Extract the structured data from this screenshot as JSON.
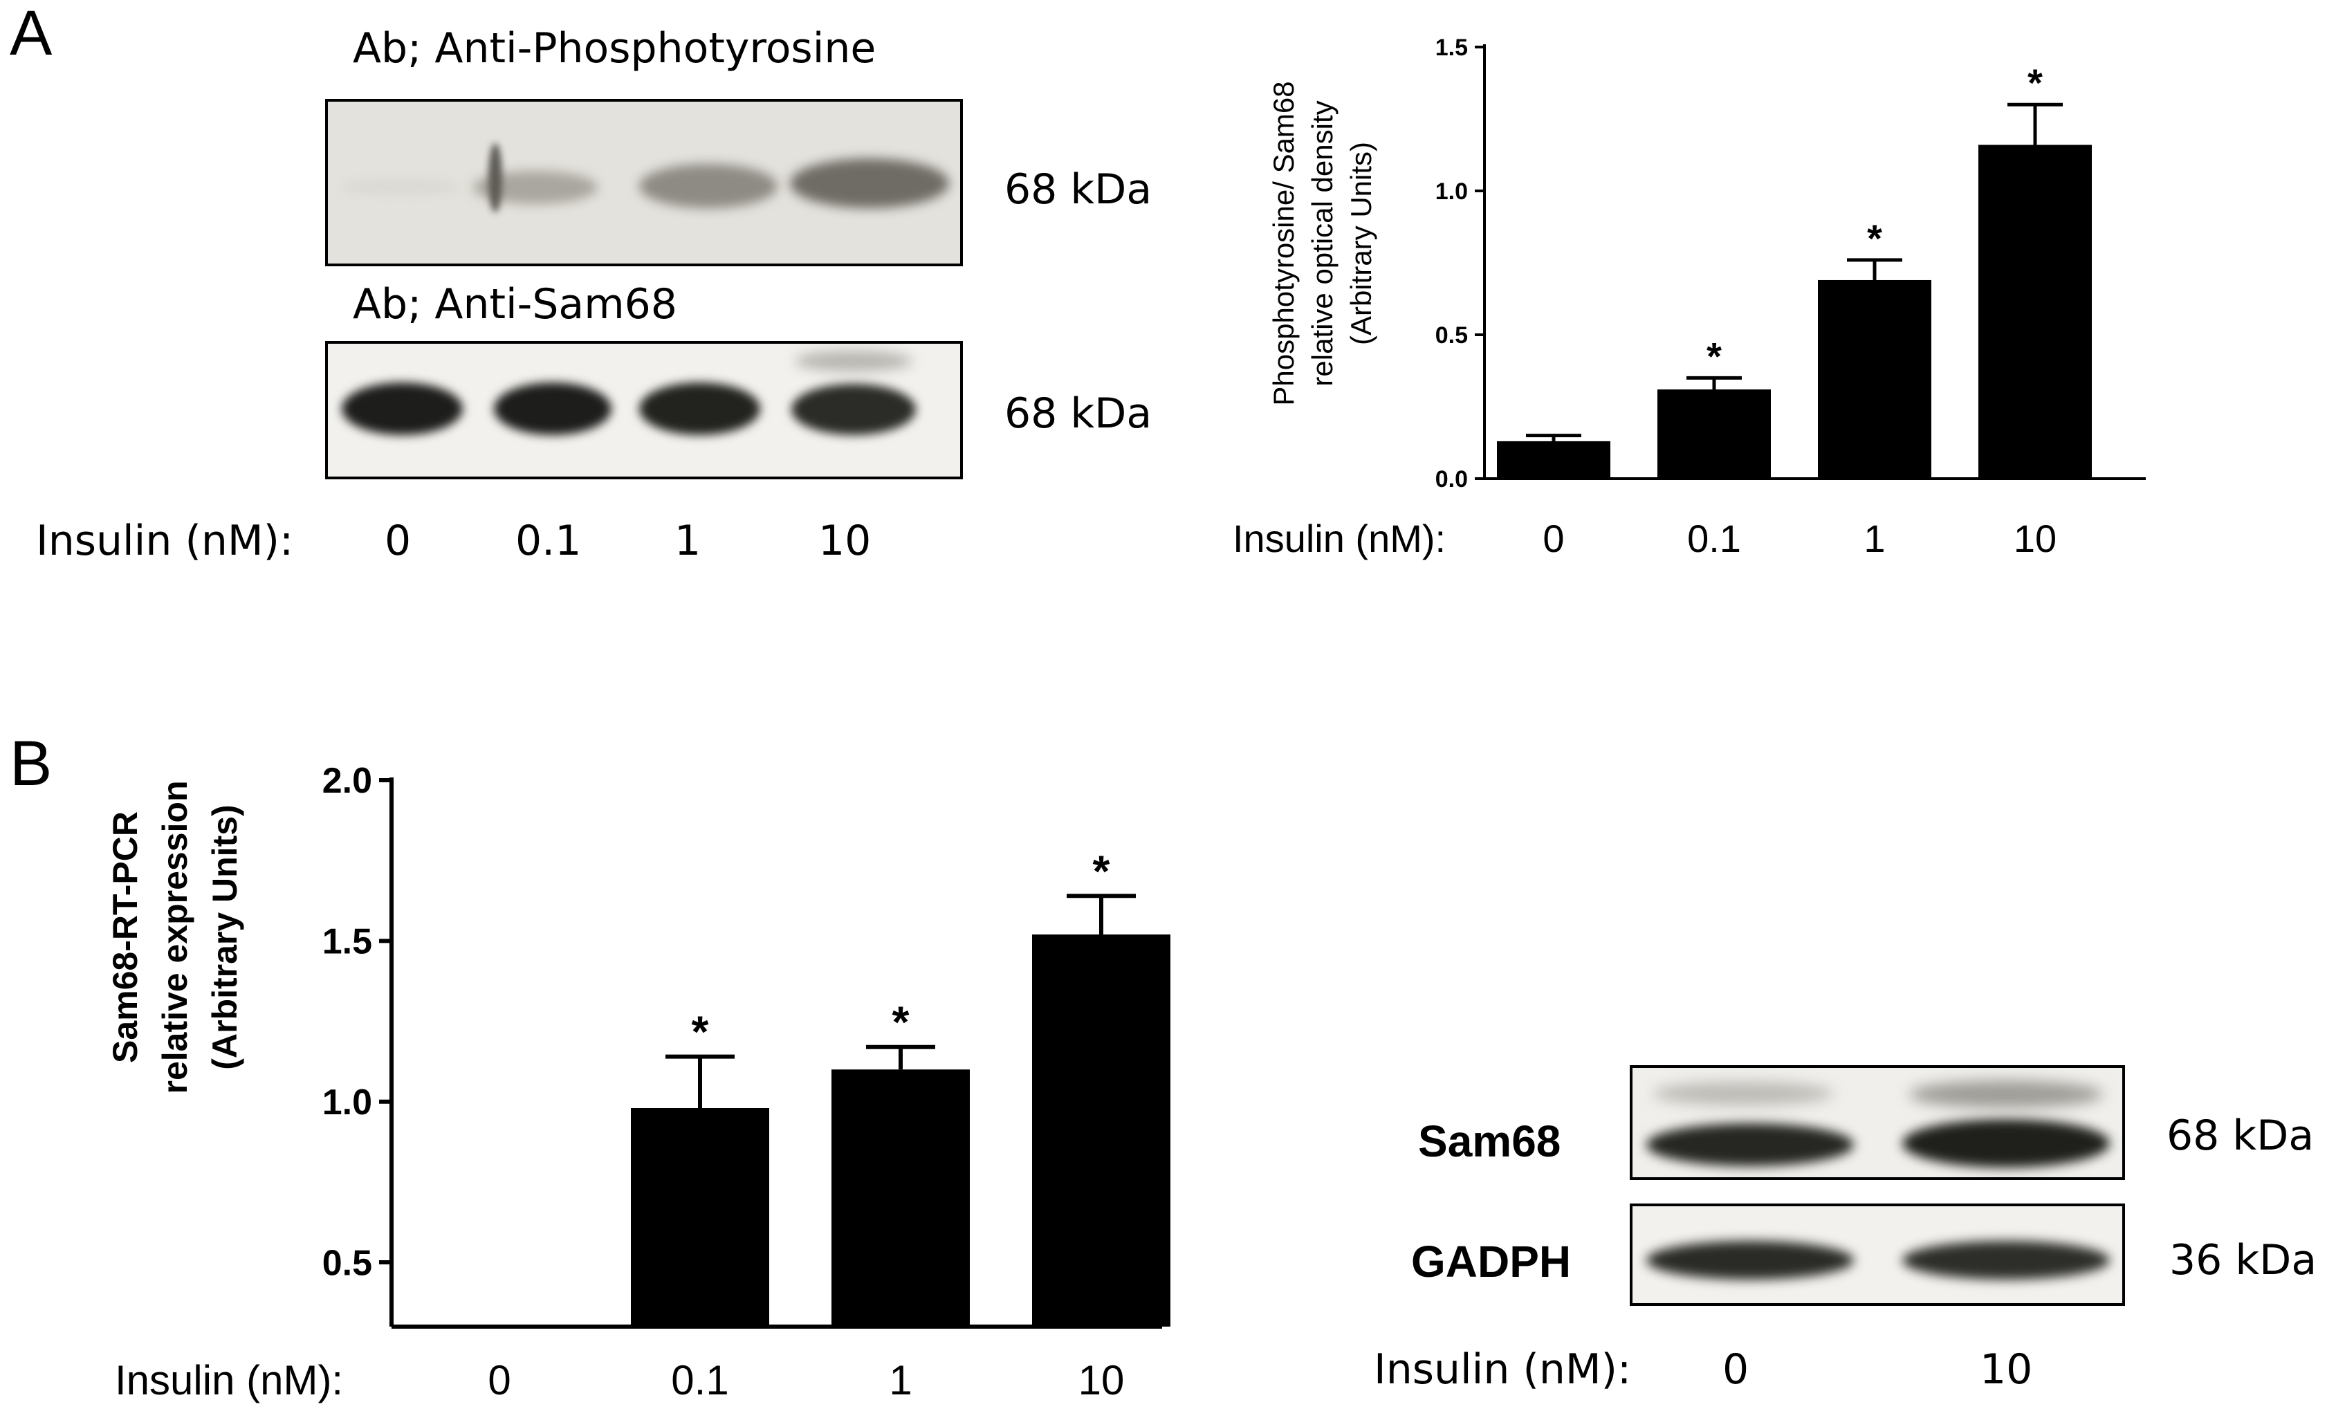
{
  "panel_a": {
    "letter": "A",
    "blot_top_title": "Ab; Anti-Phosphotyrosine",
    "blot_bottom_title": "Ab; Anti-Sam68",
    "kda_top": "68 kDa",
    "kda_bottom": "68 kDa",
    "xaxis_caption": "Insulin (nM):",
    "lanes": [
      "0",
      "0.1",
      "1",
      "10"
    ]
  },
  "panel_b": {
    "letter": "B",
    "blot_row_labels": [
      "Sam68",
      "GADPH"
    ],
    "kda_labels": [
      "68 kDa",
      "36 kDa"
    ],
    "xaxis_caption": "Insulin (nM):",
    "lanes": [
      "0",
      "10"
    ]
  },
  "chart_data": [
    {
      "type": "bar",
      "ylabel": [
        "Phosphotyrosine/ Sam68",
        "relative optical density",
        "(Arbitrary Units)"
      ],
      "xlabel": "Insulin (nM):",
      "categories": [
        "0",
        "0.1",
        "1",
        "10"
      ],
      "values": [
        0.13,
        0.31,
        0.69,
        1.16
      ],
      "errors": [
        0.02,
        0.04,
        0.07,
        0.14
      ],
      "annotations": [
        "",
        "*",
        "*",
        "*"
      ],
      "ylim": [
        0,
        1.5
      ],
      "yticks": [
        "0.0",
        "0.5",
        "1.0",
        "1.5"
      ],
      "bar_color": "#000000"
    },
    {
      "type": "bar",
      "ylabel": [
        "Sam68-RT-PCR",
        "relative expression",
        "(Arbitrary Units)"
      ],
      "xlabel": "Insulin (nM):",
      "categories": [
        "0",
        "0.1",
        "1",
        "10"
      ],
      "values": [
        0.25,
        0.98,
        1.1,
        1.52
      ],
      "errors": [
        0,
        0.16,
        0.07,
        0.12
      ],
      "annotations": [
        "",
        "*",
        "*",
        "*"
      ],
      "ylim": [
        0.3,
        2.0
      ],
      "yticks": [
        "0.5",
        "1.0",
        "1.5",
        "2.0"
      ],
      "bar_color": "#000000"
    }
  ]
}
